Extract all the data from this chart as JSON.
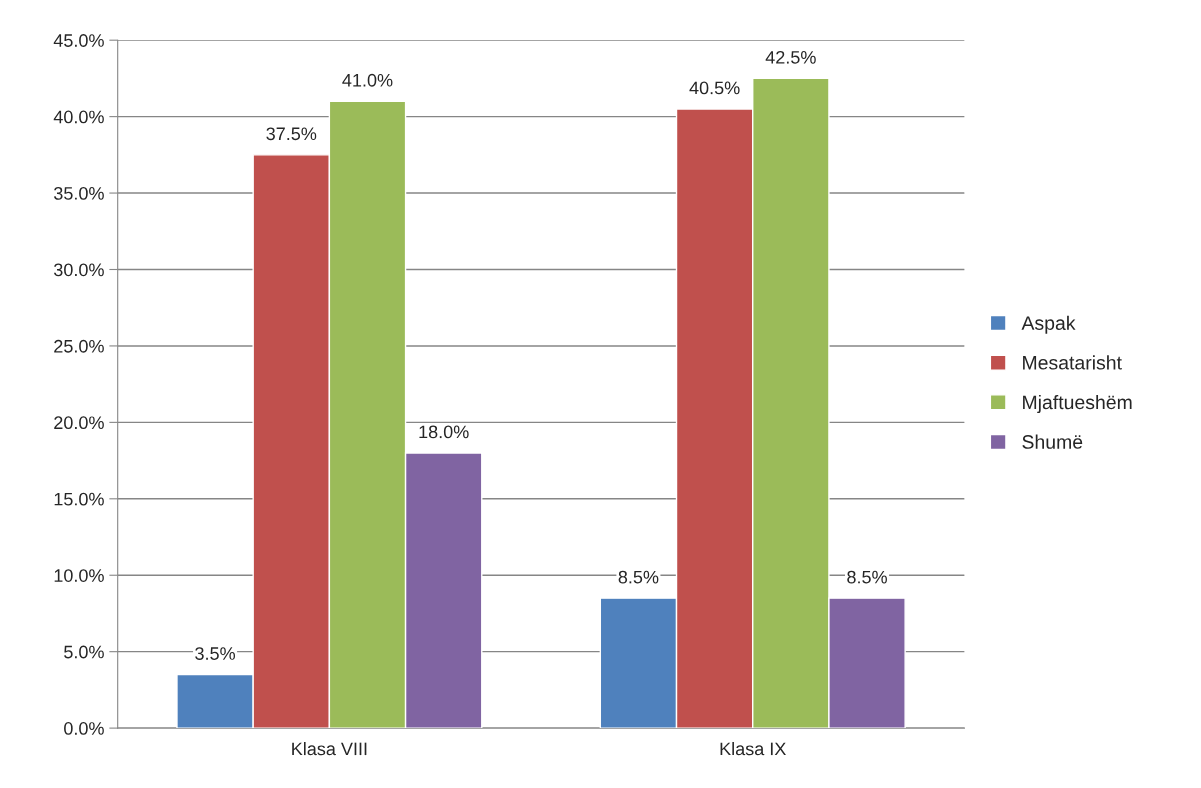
{
  "chart_data": {
    "type": "bar",
    "categories": [
      "Klasa VIII",
      "Klasa IX"
    ],
    "series": [
      {
        "name": "Aspak",
        "color": "#4f81bd",
        "values": [
          3.5,
          8.5
        ],
        "value_labels": [
          "3.5%",
          "8.5%"
        ]
      },
      {
        "name": "Mesatarisht",
        "color": "#c0504d",
        "values": [
          37.5,
          40.5
        ],
        "value_labels": [
          "37.5%",
          "40.5%"
        ]
      },
      {
        "name": "Mjaftueshëm",
        "color": "#9bbb59",
        "values": [
          41.0,
          42.5
        ],
        "value_labels": [
          "41.0%",
          "42.5%"
        ]
      },
      {
        "name": "Shumë",
        "color": "#8064a2",
        "values": [
          18.0,
          8.5
        ],
        "value_labels": [
          "18.0%",
          "8.5%"
        ]
      }
    ],
    "ylim": [
      0,
      45
    ],
    "yticks": [
      {
        "value": 0,
        "label": "0.0%"
      },
      {
        "value": 5,
        "label": "5.0%"
      },
      {
        "value": 10,
        "label": "10.0%"
      },
      {
        "value": 15,
        "label": "15.0%"
      },
      {
        "value": 20,
        "label": "20.0%"
      },
      {
        "value": 25,
        "label": "25.0%"
      },
      {
        "value": 30,
        "label": "30.0%"
      },
      {
        "value": 35,
        "label": "35.0%"
      },
      {
        "value": 40,
        "label": "40.0%"
      },
      {
        "value": 45,
        "label": "45.0%"
      }
    ],
    "grid": "y",
    "legend": "right"
  }
}
